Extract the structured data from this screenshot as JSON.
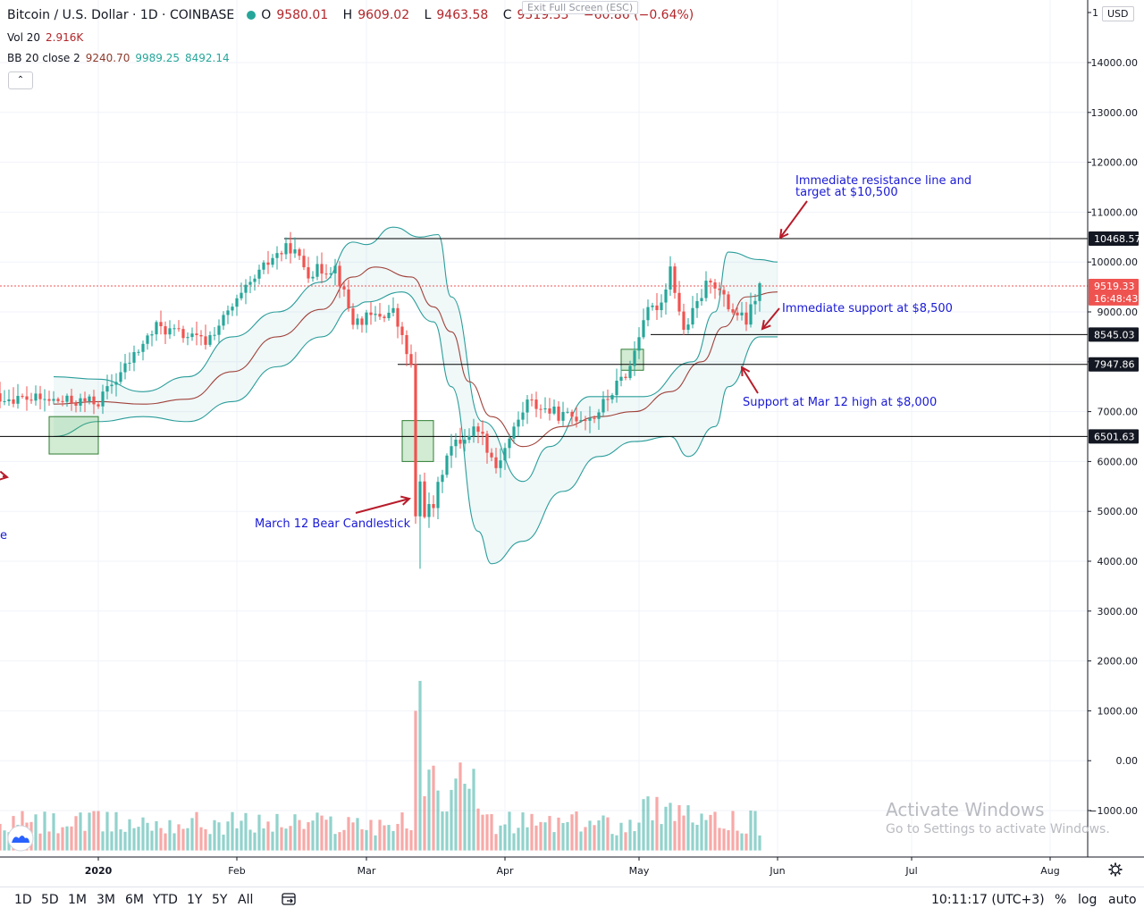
{
  "header": {
    "symbol": "Bitcoin / U.S. Dollar · 1D · COINBASE",
    "open_label": "O",
    "open": "9580.01",
    "high_label": "H",
    "high": "9609.02",
    "low_label": "L",
    "low": "9463.58",
    "close_label": "C",
    "close": "9519.33",
    "change": "−60.86 (−0.64%)"
  },
  "exit_fullscreen": "Exit Full Screen (ESC)",
  "vol_legend": {
    "name": "Vol 20",
    "value": "2.916K"
  },
  "bb_legend": {
    "name": "BB 20 close 2",
    "basis": "9240.70",
    "upper": "9989.25",
    "lower": "8492.14"
  },
  "currency": "USD",
  "colors": {
    "up": "#26a69a",
    "down": "#ef5350",
    "band": "#2a9d9a",
    "basis": "#a0423a",
    "annotation": "#1a1ad6",
    "arrow": "#b81c2a"
  },
  "chart_data": {
    "type": "candlestick",
    "y_range": [
      -1000,
      15000
    ],
    "y_ticks": [
      "14000.00",
      "13000.00",
      "12000.00",
      "11000.00",
      "10000.00",
      "9000.00",
      "8000.00",
      "7000.00",
      "6000.00",
      "5000.00",
      "4000.00",
      "3000.00",
      "2000.00",
      "1000.00",
      "0.00",
      "−1000.00"
    ],
    "x_ticks": [
      "2020",
      "Feb",
      "Mar",
      "Apr",
      "May",
      "Jun",
      "Jul",
      "Aug"
    ],
    "price_labels": [
      {
        "text": "10468.57",
        "value": 10468.57
      },
      {
        "text": "9519.33",
        "value": 9519.33
      },
      {
        "text": "16:48:43",
        "value": 9270
      },
      {
        "text": "8545.03",
        "value": 8545.03
      },
      {
        "text": "7947.86",
        "value": 7947.86
      },
      {
        "text": "6501.63",
        "value": 6501.63
      }
    ],
    "horizontal_lines": [
      10468.57,
      8545.03,
      7947.86,
      6501.63
    ],
    "last_price": 9519.33,
    "anchors": [
      {
        "date": "2019-12-10",
        "value": 7300
      },
      {
        "date": "2019-12-25",
        "value": 7200
      },
      {
        "date": "2020-01-01",
        "value": 7200
      },
      {
        "date": "2020-01-14",
        "value": 8700
      },
      {
        "date": "2020-01-25",
        "value": 8400
      },
      {
        "date": "2020-02-09",
        "value": 10100
      },
      {
        "date": "2020-02-13",
        "value": 10300
      },
      {
        "date": "2020-02-17",
        "value": 9800
      },
      {
        "date": "2020-02-23",
        "value": 9900
      },
      {
        "date": "2020-02-27",
        "value": 8800
      },
      {
        "date": "2020-03-07",
        "value": 9000
      },
      {
        "date": "2020-03-11",
        "value": 7900
      },
      {
        "date": "2020-03-12",
        "value": 4900
      },
      {
        "date": "2020-03-16",
        "value": 5100
      },
      {
        "date": "2020-03-19",
        "value": 6200
      },
      {
        "date": "2020-03-23",
        "value": 6500
      },
      {
        "date": "2020-03-26",
        "value": 6700
      },
      {
        "date": "2020-03-30",
        "value": 5900
      },
      {
        "date": "2020-04-06",
        "value": 7200
      },
      {
        "date": "2020-04-14",
        "value": 6900
      },
      {
        "date": "2020-04-21",
        "value": 6900
      },
      {
        "date": "2020-04-29",
        "value": 7900
      },
      {
        "date": "2020-05-02",
        "value": 8900
      },
      {
        "date": "2020-05-06",
        "value": 9200
      },
      {
        "date": "2020-05-08",
        "value": 9900
      },
      {
        "date": "2020-05-11",
        "value": 8600
      },
      {
        "date": "2020-05-17",
        "value": 9700
      },
      {
        "date": "2020-05-21",
        "value": 9100
      },
      {
        "date": "2020-05-25",
        "value": 8800
      },
      {
        "date": "2020-05-28",
        "value": 9519
      }
    ],
    "bollinger": {
      "upper": [
        [
          -10,
          7700
        ],
        [
          0,
          7650
        ],
        [
          10,
          7400
        ],
        [
          20,
          7700
        ],
        [
          30,
          8500
        ],
        [
          40,
          9000
        ],
        [
          50,
          9600
        ],
        [
          57,
          10400
        ],
        [
          60,
          10350
        ],
        [
          66,
          10700
        ],
        [
          72,
          10500
        ],
        [
          76,
          10550
        ],
        [
          79,
          9300
        ],
        [
          86,
          6800
        ],
        [
          95,
          5600
        ],
        [
          101,
          6300
        ],
        [
          110,
          7300
        ],
        [
          122,
          7300
        ],
        [
          133,
          8000
        ],
        [
          138,
          9000
        ],
        [
          141,
          10200
        ],
        [
          148,
          10050
        ],
        [
          152,
          10000
        ]
      ],
      "lower": [
        [
          -10,
          6500
        ],
        [
          0,
          6800
        ],
        [
          10,
          6900
        ],
        [
          20,
          6800
        ],
        [
          30,
          7200
        ],
        [
          40,
          7900
        ],
        [
          50,
          8500
        ],
        [
          57,
          9100
        ],
        [
          60,
          9200
        ],
        [
          68,
          9400
        ],
        [
          75,
          8800
        ],
        [
          79,
          7500
        ],
        [
          85,
          4600
        ],
        [
          88,
          3950
        ],
        [
          95,
          4400
        ],
        [
          104,
          5400
        ],
        [
          112,
          6100
        ],
        [
          120,
          6400
        ],
        [
          128,
          6500
        ],
        [
          132,
          6100
        ],
        [
          138,
          6700
        ],
        [
          141,
          7500
        ],
        [
          148,
          8500
        ],
        [
          152,
          8500
        ]
      ],
      "basis": [
        [
          -10,
          7150
        ],
        [
          0,
          7200
        ],
        [
          10,
          7150
        ],
        [
          20,
          7250
        ],
        [
          30,
          7800
        ],
        [
          40,
          8500
        ],
        [
          50,
          9050
        ],
        [
          57,
          9700
        ],
        [
          62,
          9900
        ],
        [
          70,
          9700
        ],
        [
          75,
          9100
        ],
        [
          79,
          8600
        ],
        [
          83,
          7600
        ],
        [
          88,
          6900
        ],
        [
          95,
          6300
        ],
        [
          104,
          6700
        ],
        [
          112,
          6900
        ],
        [
          120,
          7000
        ],
        [
          128,
          7400
        ],
        [
          135,
          8000
        ],
        [
          140,
          8700
        ],
        [
          145,
          9300
        ],
        [
          152,
          9400
        ]
      ]
    },
    "boxes": [
      {
        "date_start": "2019-12-21",
        "date_end": "2020-01-01",
        "top": 6900,
        "bottom": 6150
      },
      {
        "date_start": "2020-03-09",
        "date_end": "2020-03-16",
        "top": 6820,
        "bottom": 6000
      },
      {
        "date_start": "2020-04-27",
        "date_end": "2020-05-02",
        "top": 8250,
        "bottom": 7830
      }
    ],
    "annotations": [
      {
        "lines": [
          "Immediate resistance line and",
          "target at $10,500"
        ]
      },
      {
        "lines": [
          "Immediate support at $8,500"
        ]
      },
      {
        "lines": [
          "Support at Mar 12 high at $8,000"
        ]
      },
      {
        "lines": [
          "March 12 Bear Candlestick"
        ]
      },
      {
        "lines": [
          "e"
        ]
      }
    ],
    "volume_highlights": [
      {
        "date": "2020-03-12",
        "volume": 2800
      },
      {
        "date": "2020-03-13",
        "volume": 3400
      },
      {
        "date": "2020-03-16",
        "volume": 1700
      },
      {
        "date": "2020-05-11",
        "volume": 700
      }
    ]
  },
  "toolbar": {
    "ranges": [
      "1D",
      "5D",
      "1M",
      "3M",
      "6M",
      "YTD",
      "1Y",
      "5Y",
      "All"
    ],
    "clock": "10:11:17 (UTC+3)",
    "pct": "%",
    "log": "log",
    "auto": "auto"
  },
  "watermark": {
    "line1": "Activate Windows",
    "line2": "Go to Settings to activate Windows."
  }
}
